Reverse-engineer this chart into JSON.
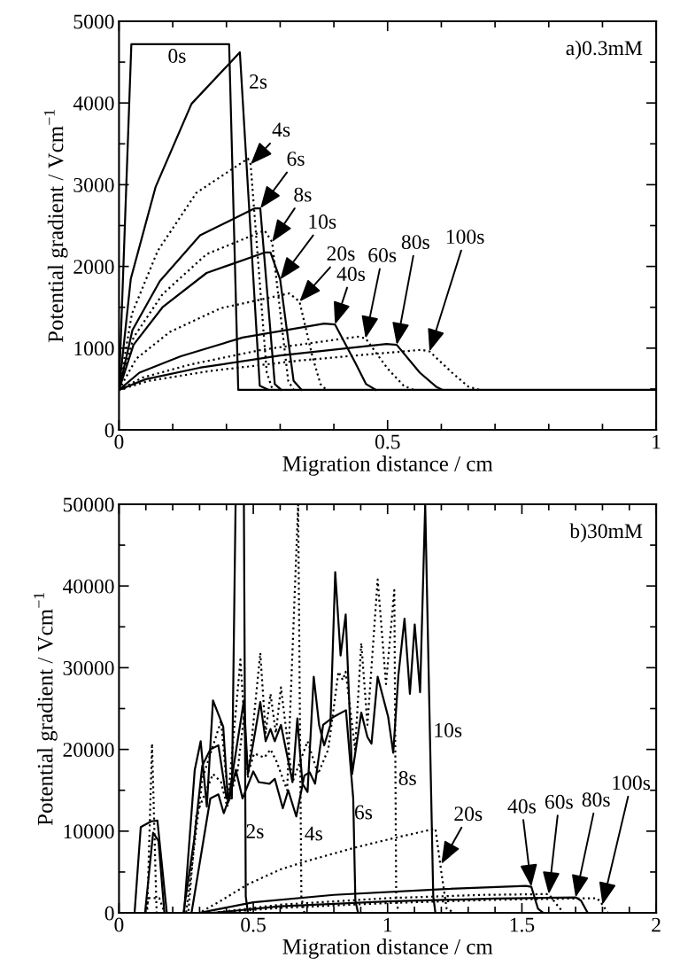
{
  "chart_data": [
    {
      "type": "line",
      "xlabel": "Migration distance / cm",
      "ylabel": "Potential gradient / Vcm$^{−1}$",
      "xlim": [
        0,
        1
      ],
      "xticks": [
        0,
        0.5,
        1
      ],
      "ylim": [
        0,
        5000
      ],
      "yticks": [
        0,
        1000,
        2000,
        3000,
        4000,
        5000
      ],
      "annotations": [
        "a)0.3mM",
        "0s",
        "2s",
        {
          "text": "4s",
          "x": 0.245,
          "y": 3250
        },
        {
          "text": "6s",
          "x": 0.263,
          "y": 2710
        },
        {
          "text": "8s",
          "x": 0.285,
          "y": 2300
        },
        {
          "text": "10s",
          "x": 0.3,
          "y": 1840
        },
        {
          "text": "20s",
          "x": 0.336,
          "y": 1570
        },
        {
          "text": "40s",
          "x": 0.402,
          "y": 1290
        },
        {
          "text": "60s",
          "x": 0.459,
          "y": 1120
        },
        {
          "text": "80s",
          "x": 0.517,
          "y": 1040
        },
        {
          "text": "100s",
          "x": 0.578,
          "y": 960
        }
      ],
      "series": [
        {
          "color": "#000000",
          "line_style": "solid",
          "x": [
            0,
            0.023,
            0.205,
            0.222,
            1
          ],
          "values": [
            490,
            4720,
            4720,
            490,
            490
          ]
        },
        {
          "color": "#000000",
          "line_style": "solid",
          "x": [
            0,
            0.022,
            0.068,
            0.135,
            0.225,
            0.262,
            0.278
          ],
          "values": [
            490,
            1850,
            2970,
            3990,
            4620,
            540,
            490
          ]
        },
        {
          "color": "#000000",
          "line_style": "dotted",
          "x": [
            0,
            0.024,
            0.072,
            0.144,
            0.24,
            0.245,
            0.275,
            0.286
          ],
          "values": [
            490,
            1420,
            2190,
            2900,
            3320,
            3250,
            700,
            490
          ]
        },
        {
          "color": "#000000",
          "line_style": "solid",
          "x": [
            0,
            0.025,
            0.076,
            0.151,
            0.252,
            0.263,
            0.29,
            0.302
          ],
          "values": [
            490,
            1220,
            1820,
            2380,
            2710,
            2710,
            560,
            490
          ]
        },
        {
          "color": "#000000",
          "line_style": "dotted",
          "x": [
            0,
            0.027,
            0.081,
            0.163,
            0.271,
            0.285,
            0.315,
            0.325
          ],
          "values": [
            490,
            1130,
            1660,
            2150,
            2440,
            2300,
            600,
            490
          ]
        },
        {
          "color": "#000000",
          "line_style": "solid",
          "x": [
            0,
            0.027,
            0.081,
            0.163,
            0.271,
            0.282,
            0.3,
            0.325,
            0.34
          ],
          "values": [
            490,
            1040,
            1500,
            1920,
            2170,
            2170,
            1840,
            600,
            490
          ]
        },
        {
          "color": "#000000",
          "line_style": "dotted",
          "x": [
            0,
            0.032,
            0.095,
            0.19,
            0.317,
            0.336,
            0.36,
            0.375,
            0.386
          ],
          "values": [
            490,
            870,
            1200,
            1490,
            1670,
            1570,
            900,
            560,
            490
          ]
        },
        {
          "color": "#000000",
          "line_style": "solid",
          "x": [
            0,
            0.038,
            0.115,
            0.23,
            0.382,
            0.402,
            0.44,
            0.46,
            0.478
          ],
          "values": [
            490,
            700,
            900,
            1130,
            1300,
            1290,
            820,
            560,
            490
          ]
        },
        {
          "color": "#000000",
          "line_style": "dotted",
          "x": [
            0,
            0.044,
            0.133,
            0.266,
            0.444,
            0.459,
            0.5,
            0.53,
            0.548
          ],
          "values": [
            490,
            640,
            800,
            980,
            1140,
            1120,
            750,
            540,
            490
          ]
        },
        {
          "color": "#000000",
          "line_style": "solid",
          "x": [
            0,
            0.05,
            0.15,
            0.3,
            0.498,
            0.517,
            0.56,
            0.59,
            0.602
          ],
          "values": [
            490,
            620,
            760,
            910,
            1050,
            1040,
            700,
            530,
            490
          ]
        },
        {
          "color": "#000000",
          "line_style": "dotted",
          "x": [
            0,
            0.056,
            0.169,
            0.338,
            0.563,
            0.578,
            0.62,
            0.65,
            0.671
          ],
          "values": [
            490,
            600,
            720,
            850,
            980,
            960,
            700,
            530,
            490
          ]
        }
      ]
    },
    {
      "type": "line",
      "xlabel": "Migration distance / cm",
      "ylabel": "Potential gradient / Vcm$^{−1}$",
      "xlim": [
        0,
        2
      ],
      "xticks": [
        0,
        0.5,
        1,
        1.5,
        2
      ],
      "ylim": [
        0,
        50000
      ],
      "yticks": [
        0,
        10000,
        20000,
        30000,
        40000,
        50000
      ],
      "annotations": [
        "b)30mM",
        "2s",
        "4s",
        "6s",
        "8s",
        "10s",
        {
          "text": "20s",
          "x": 1.2,
          "y": 6000
        },
        {
          "text": "40s",
          "x": 1.535,
          "y": 3200
        },
        {
          "text": "60s",
          "x": 1.6,
          "y": 2300
        },
        {
          "text": "80s",
          "x": 1.7,
          "y": 1900
        },
        {
          "text": "100s",
          "x": 1.8,
          "y": 1000
        }
      ],
      "series": [
        {
          "color": "#000000",
          "line_style": "solid",
          "x": [
            0,
            0.24,
            0.28,
            0.31,
            0.34,
            0.37,
            0.4,
            0.42,
            0.434,
            0.465,
            0.472,
            0.48,
            2
          ],
          "values": [
            0,
            0,
            9000,
            18000,
            20000,
            20500,
            14000,
            14000,
            50000,
            50000,
            2000,
            0,
            0
          ]
        },
        {
          "color": "#000000",
          "line_style": "dotted",
          "x": [
            0,
            0.1,
            0.11,
            0.15,
            0.17,
            0.258,
            0.288,
            0.35,
            0.38,
            0.403,
            0.442,
            0.465,
            0.48,
            0.503,
            0.541,
            0.564,
            0.587,
            0.626,
            0.667,
            0.679,
            0.69,
            2
          ],
          "values": [
            0,
            0,
            1800,
            1800,
            0,
            0,
            12000,
            17000,
            16000,
            13000,
            17500,
            24000,
            17000,
            19500,
            19000,
            20000,
            18500,
            15000,
            50000,
            2000,
            0,
            0
          ]
        },
        {
          "color": "#000000",
          "line_style": "solid",
          "x": [
            0,
            0.097,
            0.127,
            0.147,
            0.169,
            0.27,
            0.31,
            0.34,
            0.37,
            0.39,
            0.41,
            0.435,
            0.46,
            0.5,
            0.52,
            0.56,
            0.58,
            0.61,
            0.63,
            0.66,
            0.69,
            0.71,
            0.73,
            0.76,
            0.8,
            0.845,
            0.872,
            0.88,
            0.89,
            2
          ],
          "values": [
            0,
            0,
            9800,
            8800,
            0,
            0,
            8000,
            14000,
            14500,
            12200,
            14000,
            17500,
            14000,
            17300,
            16000,
            15800,
            16400,
            12800,
            15000,
            11800,
            16800,
            17200,
            15800,
            23000,
            24000,
            24800,
            14000,
            1500,
            0,
            0
          ]
        },
        {
          "color": "#000000",
          "line_style": "dotted",
          "x": [
            0,
            0.105,
            0.123,
            0.14,
            0.25,
            0.311,
            0.38,
            0.406,
            0.452,
            0.48,
            0.526,
            0.546,
            0.564,
            0.584,
            0.603,
            0.646,
            0.702,
            0.741,
            0.779,
            0.817,
            0.833,
            0.844,
            0.879,
            0.902,
            0.925,
            0.963,
            0.994,
            1.025,
            1.032,
            1.04,
            2
          ],
          "values": [
            0,
            0,
            20700,
            0,
            0,
            16500,
            23500,
            14000,
            31000,
            16500,
            31800,
            22000,
            26800,
            22000,
            27600,
            16000,
            21000,
            17000,
            20000,
            29500,
            28500,
            29500,
            20000,
            33000,
            23000,
            40800,
            28000,
            39500,
            2000,
            0,
            0
          ]
        },
        {
          "color": "#000000",
          "line_style": "solid",
          "x": [
            0,
            0.058,
            0.081,
            0.12,
            0.143,
            0.178,
            0.242,
            0.282,
            0.304,
            0.327,
            0.35,
            0.388,
            0.406,
            0.465,
            0.48,
            0.526,
            0.546,
            0.564,
            0.58,
            0.603,
            0.646,
            0.664,
            0.683,
            0.702,
            0.725,
            0.745,
            0.764,
            0.787,
            0.805,
            0.825,
            0.844,
            0.868,
            0.902,
            0.925,
            0.94,
            0.963,
            1.002,
            1.021,
            1.04,
            1.063,
            1.083,
            1.101,
            1.121,
            1.14,
            1.17,
            1.178,
            2
          ],
          "values": [
            0,
            0,
            10500,
            11200,
            11300,
            0,
            0,
            17500,
            21000,
            13000,
            26000,
            22800,
            13500,
            26000,
            17000,
            25800,
            21000,
            22500,
            21000,
            23000,
            16000,
            23800,
            15800,
            14800,
            28900,
            23000,
            20500,
            23000,
            41700,
            31500,
            36500,
            17000,
            24500,
            21500,
            20700,
            28900,
            24000,
            19600,
            29000,
            36000,
            26800,
            35300,
            27000,
            50000,
            2000,
            0,
            0
          ]
        },
        {
          "color": "#000000",
          "line_style": "dotted",
          "x": [
            0,
            0.3,
            0.38,
            0.48,
            0.6,
            0.695,
            0.88,
            1.03,
            1.178,
            1.2,
            1.22,
            1.25,
            2
          ],
          "values": [
            0,
            0,
            1500,
            3500,
            5300,
            6300,
            8000,
            9200,
            10300,
            5000,
            500,
            0,
            0
          ]
        },
        {
          "color": "#000000",
          "line_style": "solid",
          "x": [
            0,
            0.3,
            0.5,
            0.8,
            1.2,
            1.515,
            1.535,
            1.56,
            1.58,
            2
          ],
          "values": [
            0,
            0,
            1300,
            2200,
            2900,
            3300,
            3200,
            500,
            0,
            0
          ]
        },
        {
          "color": "#000000",
          "line_style": "dotted",
          "x": [
            0,
            0.35,
            0.6,
            1.0,
            1.35,
            1.6,
            1.63,
            1.655,
            2
          ],
          "values": [
            0,
            0,
            1000,
            1800,
            2200,
            2300,
            1000,
            0,
            0
          ]
        },
        {
          "color": "#000000",
          "line_style": "solid",
          "x": [
            0,
            0.35,
            0.6,
            1.0,
            1.4,
            1.7,
            1.72,
            1.745,
            2
          ],
          "values": [
            0,
            0,
            800,
            1400,
            1750,
            1900,
            1500,
            0,
            0
          ]
        },
        {
          "color": "#000000",
          "line_style": "dotted",
          "x": [
            0,
            0.35,
            0.6,
            1.0,
            1.4,
            1.78,
            1.8,
            1.82,
            2
          ],
          "values": [
            0,
            0,
            600,
            1200,
            1600,
            1800,
            1000,
            0,
            0
          ]
        }
      ]
    }
  ]
}
